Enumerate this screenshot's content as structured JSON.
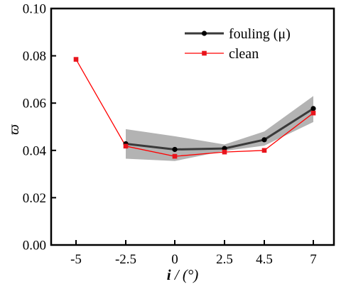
{
  "chart_data": {
    "type": "line",
    "xlabel": "i / (°)",
    "xlabel_var": "i",
    "xlabel_unit": " / (°)",
    "ylabel": "ϖ",
    "ylim": [
      0.0,
      0.1
    ],
    "yticks": [
      "0.00",
      "0.02",
      "0.04",
      "0.06",
      "0.08",
      "0.10"
    ],
    "ytick_values": [
      0.0,
      0.02,
      0.04,
      0.06,
      0.08,
      0.1
    ],
    "categories": [
      "-5",
      "-2.5",
      "0",
      "2.5",
      "4.5",
      "7"
    ],
    "grid": false,
    "legend_position": "top-right",
    "series": [
      {
        "name": "fouling (μ)",
        "color": "#3a3a3a",
        "marker_color": "#000000",
        "marker": "circle",
        "values": [
          null,
          0.0428,
          0.0404,
          0.0408,
          0.0445,
          0.0577
        ],
        "band_upper": [
          null,
          0.049,
          0.046,
          0.0425,
          0.048,
          0.063
        ],
        "band_lower": [
          null,
          0.0365,
          0.0355,
          0.0398,
          0.042,
          0.052
        ],
        "band_color": "#b3b3b3"
      },
      {
        "name": "clean",
        "color": "#ff0000",
        "marker_color": "#e8141c",
        "marker": "square",
        "values": [
          0.0785,
          0.0418,
          0.0375,
          0.0393,
          0.04,
          0.0558
        ]
      }
    ]
  }
}
